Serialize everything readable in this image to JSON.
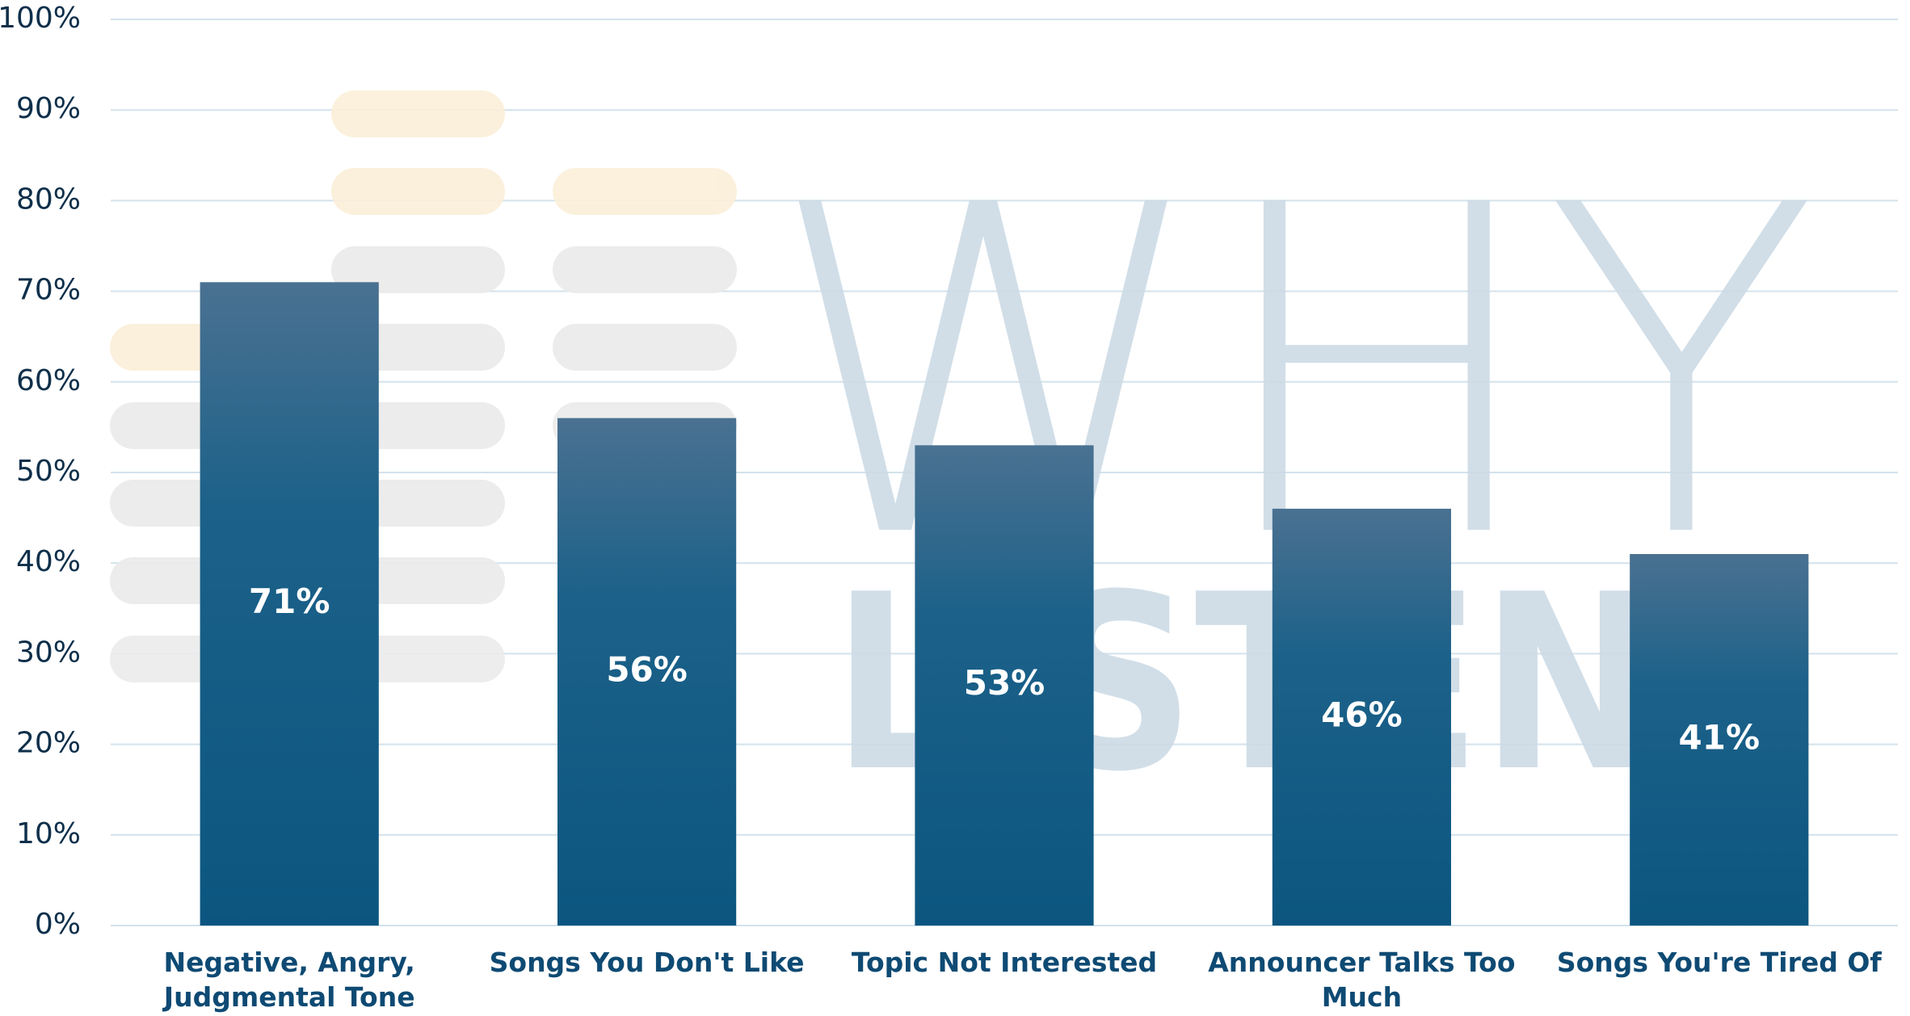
{
  "chart_data": {
    "type": "bar",
    "watermark": [
      "WHY",
      "LISTEN"
    ],
    "categories": [
      "Negative, Angry, Judgmental Tone",
      "Songs You Don't Like",
      "Topic Not Interested",
      "Announcer Talks Too Much",
      "Songs You're Tired Of"
    ],
    "values": [
      71,
      56,
      53,
      46,
      41
    ],
    "value_labels": [
      "71%",
      "56%",
      "53%",
      "46%",
      "41%"
    ],
    "color": "#0b5680",
    "ylim": [
      0,
      100
    ],
    "yticks": [
      {
        "value": 0,
        "label": "0%"
      },
      {
        "value": 10,
        "label": "10%"
      },
      {
        "value": 20,
        "label": "20%"
      },
      {
        "value": 30,
        "label": "30%"
      },
      {
        "value": 40,
        "label": "40%"
      },
      {
        "value": 50,
        "label": "50%"
      },
      {
        "value": 60,
        "label": "60%"
      },
      {
        "value": 70,
        "label": "70%"
      },
      {
        "value": 80,
        "label": "80%"
      },
      {
        "value": 90,
        "label": "90%"
      },
      {
        "value": 100,
        "label": "100%"
      }
    ],
    "grid": true
  }
}
